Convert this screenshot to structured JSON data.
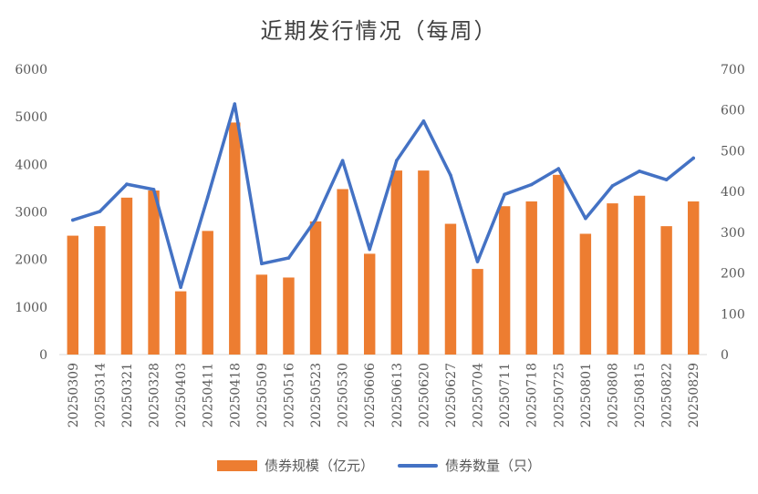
{
  "chart_data": {
    "type": "bar",
    "title": "近期发行情况（每周）",
    "categories": [
      "20250309",
      "20250314",
      "20250321",
      "20250328",
      "20250403",
      "20250411",
      "20250418",
      "20250509",
      "20250516",
      "20250523",
      "20250530",
      "20250606",
      "20250613",
      "20250620",
      "20250627",
      "20250704",
      "20250711",
      "20250718",
      "20250725",
      "20250801",
      "20250808",
      "20250815",
      "20250822",
      "20250829"
    ],
    "left_axis": {
      "ylim": [
        0,
        6000
      ],
      "ticks": [
        "0",
        "1000",
        "2000",
        "3000",
        "4000",
        "5000",
        "6000"
      ]
    },
    "right_axis": {
      "ylim": [
        0,
        700
      ],
      "ticks": [
        "0",
        "100",
        "200",
        "300",
        "400",
        "500",
        "600",
        "700"
      ]
    },
    "series": [
      {
        "name": "债券规模（亿元）",
        "type": "bar",
        "axis": "left",
        "color": "#ED7D31",
        "values": [
          2500,
          2700,
          3300,
          3450,
          1330,
          2600,
          4880,
          1680,
          1620,
          2800,
          3480,
          2120,
          3870,
          3870,
          2750,
          1800,
          3120,
          3220,
          3780,
          2540,
          3180,
          3340,
          2700,
          3220
        ]
      },
      {
        "name": "债券数量（只）",
        "type": "line",
        "axis": "right",
        "color": "#4472C4",
        "values": [
          330,
          351,
          418,
          405,
          165,
          386,
          615,
          223,
          237,
          331,
          476,
          258,
          476,
          573,
          440,
          228,
          393,
          417,
          456,
          334,
          414,
          450,
          429,
          482
        ]
      }
    ],
    "legend_position": "bottom",
    "grid": false
  }
}
